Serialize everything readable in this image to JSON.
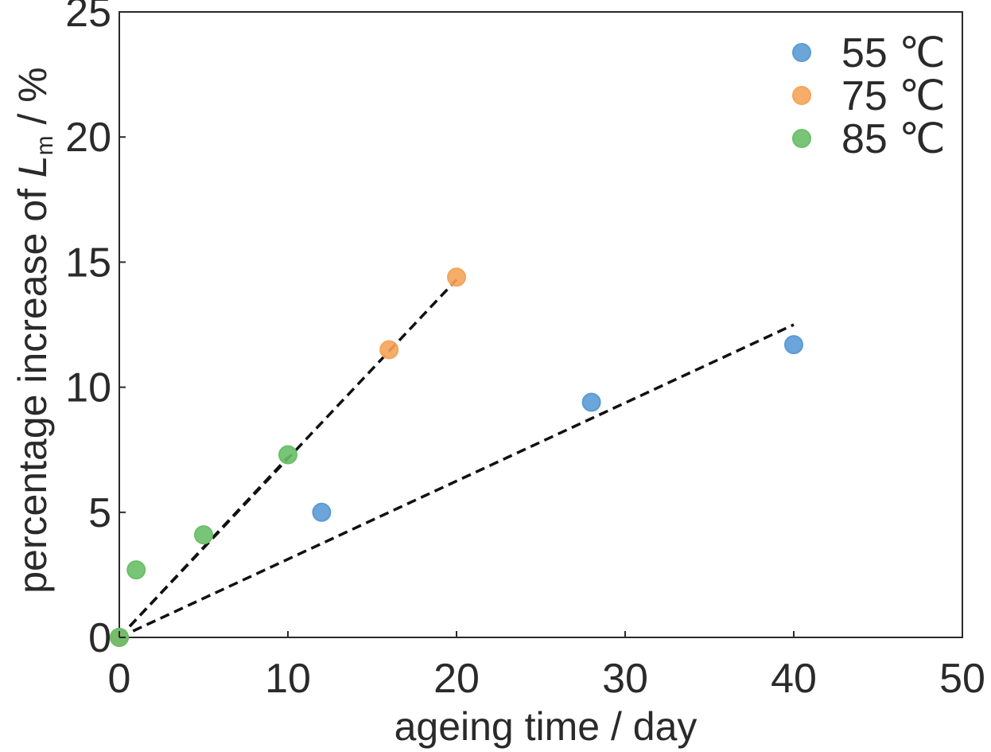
{
  "chart_data": {
    "type": "scatter",
    "xlabel": "ageing time / day",
    "ylabel_parts": {
      "prefix": "percentage increase of ",
      "symbol": "L",
      "subscript": "m",
      "suffix": " / %"
    },
    "xlim": [
      0,
      50
    ],
    "ylim": [
      0,
      25
    ],
    "xticks": [
      0,
      10,
      20,
      30,
      40,
      50
    ],
    "yticks": [
      0,
      5,
      10,
      15,
      20,
      25
    ],
    "grid": false,
    "legend_position": "top-right",
    "series": [
      {
        "name": "55 ℃",
        "color": "#5b9bd5",
        "points": [
          [
            0,
            0
          ],
          [
            12,
            5.0
          ],
          [
            28,
            9.4
          ],
          [
            40,
            11.7
          ]
        ],
        "fit": [
          [
            0,
            0
          ],
          [
            40,
            12.5
          ]
        ]
      },
      {
        "name": "75 ℃",
        "color": "#f5a45a",
        "points": [
          [
            0,
            0
          ],
          [
            16,
            11.5
          ],
          [
            20,
            14.4
          ]
        ],
        "fit": [
          [
            0,
            0
          ],
          [
            20,
            14.3
          ]
        ]
      },
      {
        "name": "85 ℃",
        "color": "#6abf69",
        "points": [
          [
            0,
            0
          ],
          [
            1,
            2.7
          ],
          [
            5,
            4.1
          ],
          [
            10,
            7.3
          ]
        ],
        "fit": [
          [
            0,
            0
          ],
          [
            10,
            7.2
          ]
        ]
      }
    ]
  }
}
